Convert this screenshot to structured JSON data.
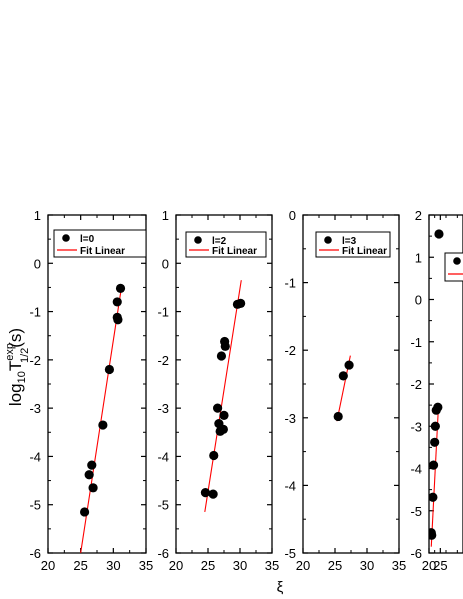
{
  "figure": {
    "ylabel": "log10T1/2exp(s)",
    "ylabel_parts": {
      "base": "log",
      "sub10": "10",
      "main": "T",
      "sup": "exp",
      "sub": "1/2",
      "tail": "(s)"
    },
    "xlabel": "ξ"
  },
  "chart_data": [
    {
      "type": "scatter",
      "panel": "l0",
      "xlim": [
        20,
        35
      ],
      "ylim": [
        -6,
        1
      ],
      "xticks": [
        20,
        25,
        30,
        35
      ],
      "yticks": [
        -6,
        -5,
        -4,
        -3,
        -2,
        -1,
        0,
        1
      ],
      "legend_position": "top-left",
      "series": [
        {
          "name": "l=0",
          "marker": "circle",
          "color": "#000000",
          "points": [
            [
              25.6,
              -5.15
            ],
            [
              26.3,
              -4.38
            ],
            [
              26.7,
              -4.18
            ],
            [
              26.9,
              -4.65
            ],
            [
              28.4,
              -3.35
            ],
            [
              29.4,
              -2.2
            ],
            [
              30.6,
              -0.8
            ],
            [
              30.6,
              -1.12
            ],
            [
              30.7,
              -1.17
            ],
            [
              31.1,
              -0.52
            ]
          ]
        },
        {
          "name": "Fit Linear",
          "type": "line",
          "color": "#ff0000",
          "points": [
            [
              25.0,
              -6.0
            ],
            [
              31.3,
              -0.45
            ]
          ]
        }
      ]
    },
    {
      "type": "scatter",
      "panel": "l2",
      "xlim": [
        20,
        35
      ],
      "ylim": [
        -6,
        1
      ],
      "xticks": [
        20,
        25,
        30,
        35
      ],
      "yticks": [
        -6,
        -5,
        -4,
        -3,
        -2,
        -1,
        0,
        1
      ],
      "legend_position": "top-right",
      "series": [
        {
          "name": "l=2",
          "marker": "circle",
          "color": "#000000",
          "points": [
            [
              24.6,
              -4.75
            ],
            [
              25.8,
              -4.78
            ],
            [
              25.9,
              -3.98
            ],
            [
              26.5,
              -3.0
            ],
            [
              26.7,
              -3.32
            ],
            [
              26.9,
              -3.48
            ],
            [
              27.1,
              -1.92
            ],
            [
              27.4,
              -3.44
            ],
            [
              27.5,
              -3.15
            ],
            [
              27.6,
              -1.62
            ],
            [
              27.7,
              -1.72
            ],
            [
              29.6,
              -0.85
            ],
            [
              30.1,
              -0.83
            ]
          ]
        },
        {
          "name": "Fit Linear",
          "type": "line",
          "color": "#ff0000",
          "points": [
            [
              24.5,
              -5.15
            ],
            [
              30.2,
              -0.35
            ]
          ]
        }
      ]
    },
    {
      "type": "scatter",
      "panel": "l3",
      "xlim": [
        20,
        35
      ],
      "ylim": [
        -5,
        0
      ],
      "xticks": [
        20,
        25,
        30,
        35
      ],
      "yticks": [
        -5,
        -4,
        -3,
        -2,
        -1,
        0
      ],
      "legend_position": "top-right",
      "series": [
        {
          "name": "l=3",
          "marker": "circle",
          "color": "#000000",
          "points": [
            [
              25.5,
              -2.98
            ],
            [
              26.3,
              -2.38
            ],
            [
              27.2,
              -2.22
            ]
          ]
        },
        {
          "name": "Fit Linear",
          "type": "line",
          "color": "#ff0000",
          "points": [
            [
              25.3,
              -3.05
            ],
            [
              27.4,
              -2.08
            ]
          ]
        }
      ]
    },
    {
      "type": "scatter",
      "panel": "l4",
      "xlim": [
        20,
        35
      ],
      "ylim": [
        -6,
        2
      ],
      "xticks": [
        20,
        25
      ],
      "yticks": [
        -6,
        -5,
        -4,
        -3,
        -2,
        -1,
        0,
        1,
        2
      ],
      "legend_position": "top-right",
      "series": [
        {
          "name": "",
          "marker": "circle",
          "color": "#000000",
          "points": [
            [
              21.0,
              -5.52
            ],
            [
              21.2,
              -5.58
            ],
            [
              21.7,
              -4.68
            ],
            [
              22.0,
              -3.92
            ],
            [
              22.5,
              -3.38
            ],
            [
              22.8,
              -3.0
            ],
            [
              23.2,
              -2.62
            ],
            [
              23.9,
              -2.55
            ],
            [
              24.4,
              1.55
            ]
          ]
        },
        {
          "name": "Fit Linear",
          "type": "line",
          "color": "#ff0000",
          "points": [
            [
              21.0,
              -5.85
            ],
            [
              24.2,
              -2.5
            ]
          ]
        }
      ]
    }
  ]
}
